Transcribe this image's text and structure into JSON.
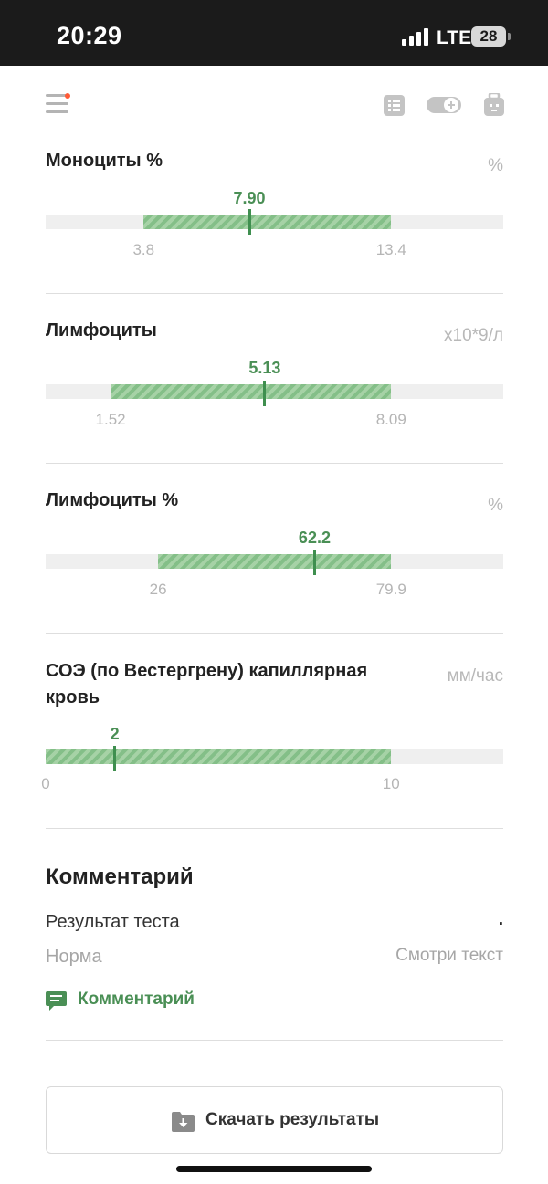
{
  "status_bar": {
    "time": "20:29",
    "network": "LTE",
    "battery": "28"
  },
  "toolbar": {
    "menu_icon": "menu-icon",
    "list_icon": "list-icon",
    "toggle_icon": "toggle-add-icon",
    "bag_icon": "medical-bag-icon",
    "notification_dot_color": "#ff5a36"
  },
  "colors": {
    "accent": "#4a8f55",
    "range_fill": "#a6d2a6",
    "track": "#efefef"
  },
  "results": [
    {
      "name": "Моноциты %",
      "unit": "%",
      "value": "7.90",
      "value_num": 7.9,
      "ref_low": "3.8",
      "ref_high": "13.4",
      "ref_low_num": 3.8,
      "ref_high_num": 13.4
    },
    {
      "name": "Лимфоциты",
      "unit": "x10*9/л",
      "value": "5.13",
      "value_num": 5.13,
      "ref_low": "1.52",
      "ref_high": "8.09",
      "ref_low_num": 1.52,
      "ref_high_num": 8.09
    },
    {
      "name": "Лимфоциты %",
      "unit": "%",
      "value": "62.2",
      "value_num": 62.2,
      "ref_low": "26",
      "ref_high": "79.9",
      "ref_low_num": 26,
      "ref_high_num": 79.9
    },
    {
      "name_line1": "СОЭ (по Вестергрену) капиллярная",
      "name_line2": "кровь",
      "unit": "мм/час",
      "value": "2",
      "value_num": 2,
      "ref_low": "0",
      "ref_high": "10",
      "ref_low_num": 0,
      "ref_high_num": 10
    }
  ],
  "comment": {
    "title": "Комментарий",
    "result_label": "Результат теста",
    "result_value": ".",
    "norm_label": "Норма",
    "norm_value": "Смотри текст",
    "link_label": "Комментарий",
    "link_icon": "comment-icon"
  },
  "download": {
    "label": "Скачать результаты",
    "icon": "folder-download-icon"
  }
}
